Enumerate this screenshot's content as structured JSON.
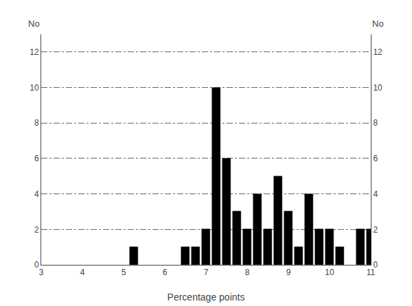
{
  "chart_data": {
    "type": "bar",
    "x": [
      5.25,
      6.5,
      6.75,
      7.0,
      7.25,
      7.5,
      7.75,
      8.0,
      8.25,
      8.5,
      8.75,
      9.0,
      9.25,
      9.5,
      9.75,
      10.0,
      10.25,
      10.75,
      11.0
    ],
    "values": [
      1,
      1,
      1,
      2,
      10,
      6,
      3,
      2,
      4,
      2,
      5,
      3,
      1,
      4,
      2,
      2,
      1,
      2,
      2
    ],
    "color": "#000000",
    "xlabel": "Percentage points",
    "ylabel": "No",
    "y2label": "No",
    "xlim": [
      3,
      11
    ],
    "xticks": [
      3,
      4,
      5,
      6,
      7,
      8,
      9,
      10,
      11
    ],
    "ylim": [
      0,
      13
    ],
    "yticks": [
      0,
      2,
      4,
      6,
      8,
      10,
      12
    ],
    "y2lim": [
      0,
      13
    ],
    "y2ticks": [
      0,
      2,
      4,
      6,
      8,
      10,
      12
    ],
    "grid": true
  }
}
